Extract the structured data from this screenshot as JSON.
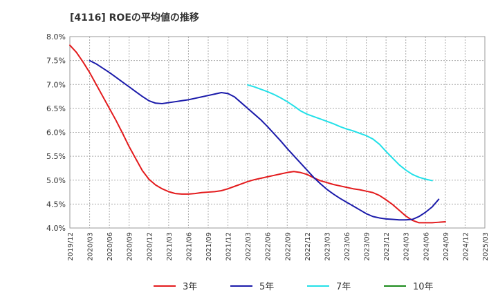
{
  "chart_data": {
    "type": "line",
    "title": "[4116]  ROEの平均値の推移",
    "xlabel": "",
    "ylabel": "",
    "ylim": [
      4.0,
      8.0
    ],
    "y_ticks": [
      "4.0%",
      "4.5%",
      "5.0%",
      "5.5%",
      "6.0%",
      "6.5%",
      "7.0%",
      "7.5%",
      "8.0%"
    ],
    "x_range": [
      0,
      63
    ],
    "x_ticks": [
      "2019/12",
      "2020/03",
      "2020/06",
      "2020/09",
      "2020/12",
      "2021/03",
      "2021/06",
      "2021/09",
      "2021/12",
      "2022/03",
      "2022/06",
      "2022/09",
      "2022/12",
      "2023/03",
      "2023/06",
      "2023/09",
      "2023/12",
      "2024/03",
      "2024/06",
      "2024/09",
      "2024/12",
      "2025/03"
    ],
    "grid": true,
    "legend_position": "bottom",
    "series": [
      {
        "name": "3年",
        "color": "#e31a1c",
        "points": [
          [
            0,
            7.82
          ],
          [
            1,
            7.67
          ],
          [
            2,
            7.47
          ],
          [
            3,
            7.25
          ],
          [
            4,
            7.0
          ],
          [
            5,
            6.75
          ],
          [
            6,
            6.5
          ],
          [
            7,
            6.25
          ],
          [
            8,
            5.98
          ],
          [
            9,
            5.7
          ],
          [
            10,
            5.45
          ],
          [
            11,
            5.2
          ],
          [
            12,
            5.02
          ],
          [
            13,
            4.9
          ],
          [
            14,
            4.82
          ],
          [
            15,
            4.76
          ],
          [
            16,
            4.72
          ],
          [
            17,
            4.71
          ],
          [
            18,
            4.71
          ],
          [
            19,
            4.72
          ],
          [
            20,
            4.74
          ],
          [
            21,
            4.75
          ],
          [
            22,
            4.76
          ],
          [
            23,
            4.78
          ],
          [
            24,
            4.82
          ],
          [
            25,
            4.87
          ],
          [
            26,
            4.92
          ],
          [
            27,
            4.97
          ],
          [
            28,
            5.01
          ],
          [
            29,
            5.04
          ],
          [
            30,
            5.07
          ],
          [
            31,
            5.1
          ],
          [
            32,
            5.13
          ],
          [
            33,
            5.16
          ],
          [
            34,
            5.18
          ],
          [
            35,
            5.16
          ],
          [
            36,
            5.12
          ],
          [
            37,
            5.05
          ],
          [
            38,
            4.99
          ],
          [
            39,
            4.95
          ],
          [
            40,
            4.91
          ],
          [
            41,
            4.88
          ],
          [
            42,
            4.85
          ],
          [
            43,
            4.82
          ],
          [
            44,
            4.8
          ],
          [
            45,
            4.77
          ],
          [
            46,
            4.74
          ],
          [
            47,
            4.68
          ],
          [
            48,
            4.59
          ],
          [
            49,
            4.49
          ],
          [
            50,
            4.37
          ],
          [
            51,
            4.25
          ],
          [
            52,
            4.16
          ],
          [
            53,
            4.11
          ],
          [
            54,
            4.11
          ],
          [
            55,
            4.11
          ],
          [
            56,
            4.12
          ],
          [
            57,
            4.13
          ]
        ]
      },
      {
        "name": "5年",
        "color": "#1a1aaa",
        "points": [
          [
            3,
            7.5
          ],
          [
            4,
            7.43
          ],
          [
            5,
            7.34
          ],
          [
            6,
            7.25
          ],
          [
            7,
            7.15
          ],
          [
            8,
            7.05
          ],
          [
            9,
            6.95
          ],
          [
            10,
            6.85
          ],
          [
            11,
            6.75
          ],
          [
            12,
            6.66
          ],
          [
            13,
            6.61
          ],
          [
            14,
            6.6
          ],
          [
            15,
            6.62
          ],
          [
            16,
            6.64
          ],
          [
            17,
            6.66
          ],
          [
            18,
            6.68
          ],
          [
            19,
            6.71
          ],
          [
            20,
            6.74
          ],
          [
            21,
            6.77
          ],
          [
            22,
            6.8
          ],
          [
            23,
            6.83
          ],
          [
            24,
            6.81
          ],
          [
            25,
            6.74
          ],
          [
            26,
            6.62
          ],
          [
            27,
            6.5
          ],
          [
            28,
            6.38
          ],
          [
            29,
            6.26
          ],
          [
            30,
            6.12
          ],
          [
            31,
            5.97
          ],
          [
            32,
            5.82
          ],
          [
            33,
            5.66
          ],
          [
            34,
            5.51
          ],
          [
            35,
            5.36
          ],
          [
            36,
            5.21
          ],
          [
            37,
            5.06
          ],
          [
            38,
            4.93
          ],
          [
            39,
            4.81
          ],
          [
            40,
            4.71
          ],
          [
            41,
            4.62
          ],
          [
            42,
            4.54
          ],
          [
            43,
            4.46
          ],
          [
            44,
            4.38
          ],
          [
            45,
            4.3
          ],
          [
            46,
            4.24
          ],
          [
            47,
            4.21
          ],
          [
            48,
            4.19
          ],
          [
            49,
            4.18
          ],
          [
            50,
            4.17
          ],
          [
            51,
            4.17
          ],
          [
            52,
            4.18
          ],
          [
            53,
            4.24
          ],
          [
            54,
            4.33
          ],
          [
            55,
            4.44
          ],
          [
            56,
            4.6
          ]
        ]
      },
      {
        "name": "7年",
        "color": "#22e0e8",
        "points": [
          [
            27,
            6.99
          ],
          [
            28,
            6.95
          ],
          [
            29,
            6.9
          ],
          [
            30,
            6.85
          ],
          [
            31,
            6.79
          ],
          [
            32,
            6.72
          ],
          [
            33,
            6.64
          ],
          [
            34,
            6.55
          ],
          [
            35,
            6.45
          ],
          [
            36,
            6.38
          ],
          [
            37,
            6.33
          ],
          [
            38,
            6.28
          ],
          [
            39,
            6.23
          ],
          [
            40,
            6.18
          ],
          [
            41,
            6.12
          ],
          [
            42,
            6.07
          ],
          [
            43,
            6.03
          ],
          [
            44,
            5.98
          ],
          [
            45,
            5.93
          ],
          [
            46,
            5.86
          ],
          [
            47,
            5.75
          ],
          [
            48,
            5.6
          ],
          [
            49,
            5.46
          ],
          [
            50,
            5.32
          ],
          [
            51,
            5.21
          ],
          [
            52,
            5.12
          ],
          [
            53,
            5.06
          ],
          [
            54,
            5.02
          ],
          [
            55,
            4.99
          ]
        ]
      },
      {
        "name": "10年",
        "color": "#1a8a1a",
        "points": []
      }
    ]
  }
}
